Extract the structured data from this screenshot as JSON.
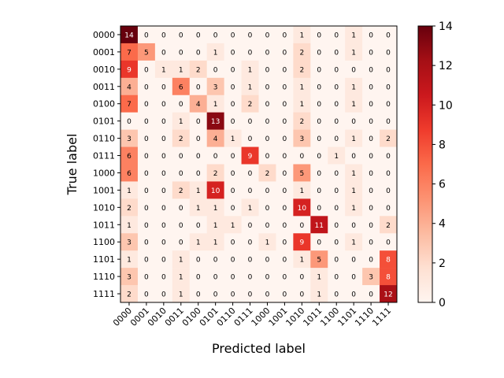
{
  "chart_data": {
    "type": "heatmap",
    "title": "",
    "xlabel": "Predicted label",
    "ylabel": "True label",
    "x_categories": [
      "0000",
      "0001",
      "0010",
      "0011",
      "0100",
      "0101",
      "0110",
      "0111",
      "1000",
      "1001",
      "1010",
      "1011",
      "1100",
      "1101",
      "1110",
      "1111"
    ],
    "y_categories": [
      "0000",
      "0001",
      "0010",
      "0011",
      "0100",
      "0101",
      "0110",
      "0111",
      "1000",
      "1001",
      "1010",
      "1011",
      "1100",
      "1101",
      "1110",
      "1111"
    ],
    "values": [
      [
        14,
        0,
        0,
        0,
        0,
        0,
        0,
        0,
        0,
        0,
        1,
        0,
        0,
        1,
        0,
        0
      ],
      [
        7,
        5,
        0,
        0,
        0,
        1,
        0,
        0,
        0,
        0,
        2,
        0,
        0,
        1,
        0,
        0
      ],
      [
        9,
        0,
        1,
        1,
        2,
        0,
        0,
        1,
        0,
        0,
        2,
        0,
        0,
        0,
        0,
        0
      ],
      [
        4,
        0,
        0,
        6,
        0,
        3,
        0,
        1,
        0,
        0,
        1,
        0,
        0,
        1,
        0,
        0
      ],
      [
        7,
        0,
        0,
        0,
        4,
        1,
        0,
        2,
        0,
        0,
        1,
        0,
        0,
        1,
        0,
        0
      ],
      [
        0,
        0,
        0,
        1,
        0,
        13,
        0,
        0,
        0,
        0,
        2,
        0,
        0,
        0,
        0,
        0
      ],
      [
        3,
        0,
        0,
        2,
        0,
        4,
        1,
        0,
        0,
        0,
        3,
        0,
        0,
        1,
        0,
        2
      ],
      [
        6,
        0,
        0,
        0,
        0,
        0,
        0,
        9,
        0,
        0,
        0,
        0,
        1,
        0,
        0,
        0
      ],
      [
        6,
        0,
        0,
        0,
        0,
        2,
        0,
        0,
        2,
        0,
        5,
        0,
        0,
        1,
        0,
        0
      ],
      [
        1,
        0,
        0,
        2,
        1,
        10,
        0,
        0,
        0,
        0,
        1,
        0,
        0,
        1,
        0,
        0
      ],
      [
        2,
        0,
        0,
        0,
        1,
        1,
        0,
        1,
        0,
        0,
        10,
        0,
        0,
        1,
        0,
        0
      ],
      [
        1,
        0,
        0,
        0,
        0,
        1,
        1,
        0,
        0,
        0,
        0,
        11,
        0,
        0,
        0,
        2
      ],
      [
        3,
        0,
        0,
        0,
        1,
        1,
        0,
        0,
        1,
        0,
        9,
        0,
        0,
        1,
        0,
        0
      ],
      [
        1,
        0,
        0,
        1,
        0,
        0,
        0,
        0,
        0,
        0,
        1,
        5,
        0,
        0,
        0,
        8
      ],
      [
        3,
        0,
        0,
        1,
        0,
        0,
        0,
        0,
        0,
        0,
        0,
        1,
        0,
        0,
        3,
        8
      ],
      [
        2,
        0,
        0,
        1,
        0,
        0,
        0,
        0,
        0,
        0,
        0,
        1,
        0,
        0,
        0,
        12
      ]
    ],
    "colormap": "Reds",
    "vmin": 0,
    "vmax": 14,
    "colorbar_ticks": [
      0,
      2,
      4,
      6,
      8,
      10,
      12,
      14
    ],
    "colorbar_tick_labels": [
      "0",
      "2",
      "4",
      "6",
      "8",
      "10",
      "12",
      "14"
    ],
    "text_color_light": "#ffffff",
    "text_color_dark": "#000000",
    "grid": false
  }
}
